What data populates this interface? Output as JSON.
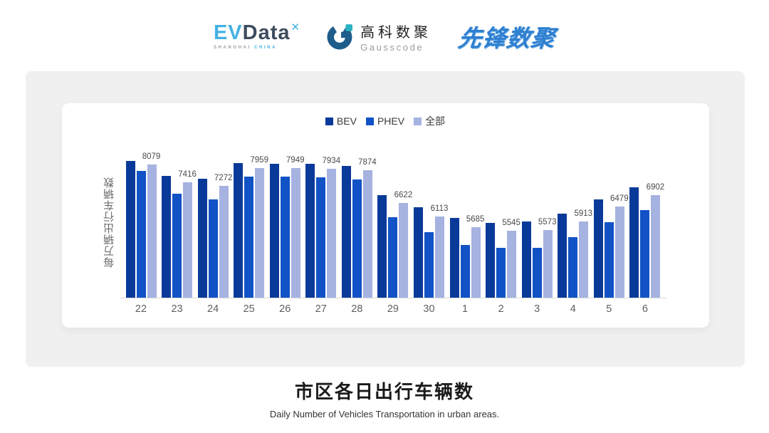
{
  "header": {
    "evdata": {
      "ev": "EV",
      "data": "Data",
      "mark": "✕",
      "sub_left": "SHANGHAI",
      "sub_right": "CHINA"
    },
    "gausscode": {
      "cn": "高科数聚",
      "en": "Gausscode"
    },
    "xianfeng": {
      "text": "先锋数聚"
    }
  },
  "chart_data": {
    "type": "bar",
    "title": "市区各日出行车辆数",
    "subtitle": "Daily Number of Vehicles Transportation in urban areas.",
    "ylabel": "每万辆出行车辆数",
    "xlabel": "",
    "categories": [
      "22",
      "23",
      "24",
      "25",
      "26",
      "27",
      "28",
      "29",
      "30",
      "1",
      "2",
      "3",
      "4",
      "5",
      "6"
    ],
    "series": [
      {
        "key": "bev",
        "name": "BEV",
        "color": "#0a3a99",
        "values": [
          8215,
          7644,
          7552,
          8142,
          8123,
          8115,
          8033,
          6926,
          6447,
          6047,
          5865,
          5903,
          6219,
          6763,
          7209
        ]
      },
      {
        "key": "phev",
        "name": "PHEV",
        "color": "#1153c6",
        "values": [
          7851,
          6972,
          6755,
          7625,
          7617,
          7590,
          7524,
          6083,
          5495,
          5022,
          4897,
          4905,
          5305,
          5892,
          6355
        ]
      },
      {
        "key": "all",
        "name": "全部",
        "color": "#a6b2e0",
        "values": [
          8079,
          7416,
          7272,
          7959,
          7949,
          7934,
          7874,
          6622,
          6113,
          5685,
          5545,
          5573,
          5913,
          6479,
          6902
        ]
      }
    ],
    "data_labels": {
      "series": "全部",
      "values": [
        "8079",
        "7416",
        "7272",
        "7959",
        "7949",
        "7934",
        "7874",
        "6622",
        "6113",
        "5685",
        "5545",
        "5573",
        "5913",
        "6479",
        "6902"
      ]
    },
    "ylim": [
      3000,
      8300
    ],
    "grid": false,
    "legend_position": "top",
    "colors": {
      "baseline": "#dbdbdb"
    }
  },
  "footer": {
    "title": "市区各日出行车辆数",
    "subtitle": "Daily Number of Vehicles Transportation in urban areas."
  }
}
